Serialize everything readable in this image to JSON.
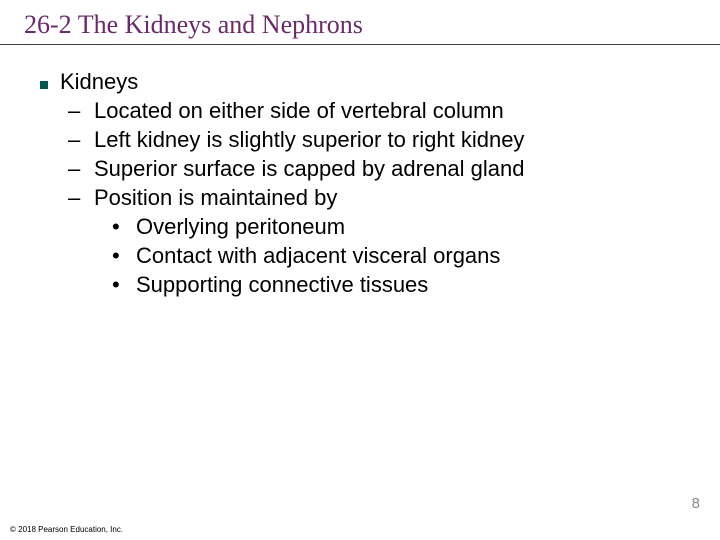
{
  "title": "26-2 The Kidneys and Nephrons",
  "colors": {
    "title_color": "#6b2a6b",
    "underline_color": "#444444",
    "bullet_l1_color": "#005a4f",
    "text_color": "#000000",
    "pagenum_color": "#8a8a8a",
    "background": "#ffffff"
  },
  "typography": {
    "title_font": "Times New Roman",
    "title_fontsize": 26,
    "body_font": "Arial",
    "body_fontsize": 22,
    "footer_fontsize": 8
  },
  "outline": {
    "l1": {
      "label": "Kidneys"
    },
    "l2": [
      {
        "label": "Located on either side of vertebral column"
      },
      {
        "label": "Left kidney is slightly superior to right kidney"
      },
      {
        "label": "Superior surface is capped by adrenal gland"
      },
      {
        "label": "Position is maintained by"
      }
    ],
    "l3": [
      {
        "label": "Overlying peritoneum"
      },
      {
        "label": "Contact with adjacent visceral organs"
      },
      {
        "label": "Supporting connective tissues"
      }
    ]
  },
  "markers": {
    "l1": "■",
    "l2": "–",
    "l3": "•"
  },
  "page_number": "8",
  "footer": "© 2018 Pearson Education, Inc."
}
